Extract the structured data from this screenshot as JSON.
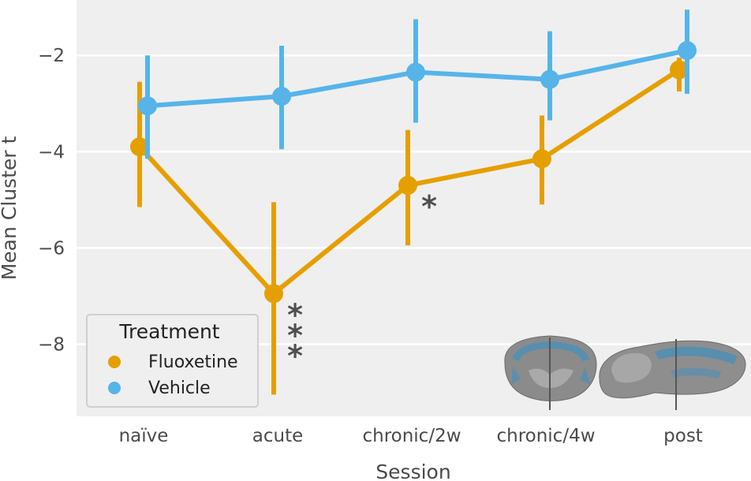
{
  "chart_data": {
    "type": "line",
    "title": "",
    "xlabel": "Session",
    "ylabel": "Mean Cluster t",
    "categories": [
      "naïve",
      "acute",
      "chronic/2w",
      "chronic/4w",
      "post"
    ],
    "ylim": [
      -9.5,
      -0.85
    ],
    "yticks": [
      -2,
      -4,
      -6,
      -8
    ],
    "ytick_labels": [
      "−2",
      "−4",
      "−6",
      "−8"
    ],
    "grid": true,
    "legend": {
      "title": "Treatment",
      "position": "lower-left"
    },
    "series": [
      {
        "name": "Fluoxetine",
        "color": "#e69f00",
        "values": [
          -3.9,
          -6.95,
          -4.7,
          -4.15,
          -2.3
        ],
        "ci_low": [
          -5.15,
          -9.05,
          -5.95,
          -5.1,
          -2.75
        ],
        "ci_high": [
          -2.55,
          -5.05,
          -3.55,
          -3.25,
          -2.05
        ]
      },
      {
        "name": "Vehicle",
        "color": "#56b4e9",
        "values": [
          -3.05,
          -2.85,
          -2.35,
          -2.5,
          -1.9
        ],
        "ci_low": [
          -4.15,
          -3.95,
          -3.4,
          -3.35,
          -2.8
        ],
        "ci_high": [
          -2.0,
          -1.8,
          -1.25,
          -1.5,
          -1.05
        ]
      }
    ],
    "annotations": [
      {
        "category": "acute",
        "text": "***"
      },
      {
        "category": "chronic/2w",
        "text": "*"
      }
    ],
    "inset": "brain-slices-icon"
  }
}
